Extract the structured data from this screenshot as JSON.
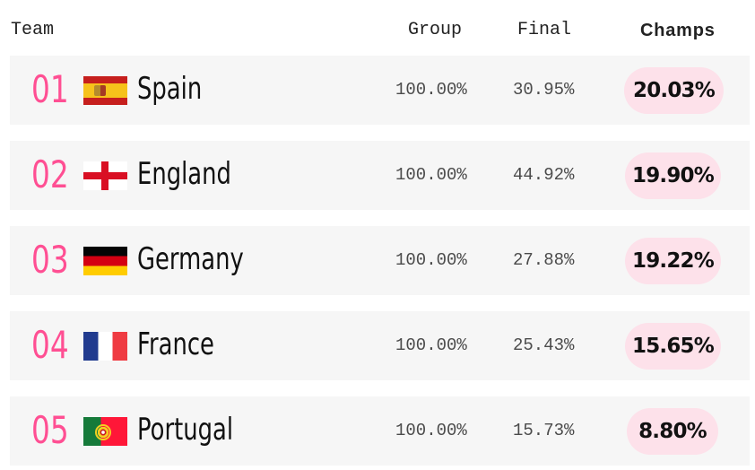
{
  "header": {
    "team": "Team",
    "group": "Group",
    "final": "Final",
    "champs": "Champs"
  },
  "teams": [
    {
      "rank": "01",
      "name": "Spain",
      "flag_icon": "spain-flag-icon",
      "group": "100.00%",
      "final": "30.95%",
      "champs": "20.03%"
    },
    {
      "rank": "02",
      "name": "England",
      "flag_icon": "england-flag-icon",
      "group": "100.00%",
      "final": "44.92%",
      "champs": "19.90%"
    },
    {
      "rank": "03",
      "name": "Germany",
      "flag_icon": "germany-flag-icon",
      "group": "100.00%",
      "final": "27.88%",
      "champs": "19.22%"
    },
    {
      "rank": "04",
      "name": "France",
      "flag_icon": "france-flag-icon",
      "group": "100.00%",
      "final": "25.43%",
      "champs": "15.65%"
    },
    {
      "rank": "05",
      "name": "Portugal",
      "flag_icon": "portugal-flag-icon",
      "group": "100.00%",
      "final": "15.73%",
      "champs": "8.80%"
    }
  ],
  "colors": {
    "rank_accent": "#ff4f93",
    "row_background": "#f6f6f6",
    "champs_pill_background": "#fde1ea"
  }
}
